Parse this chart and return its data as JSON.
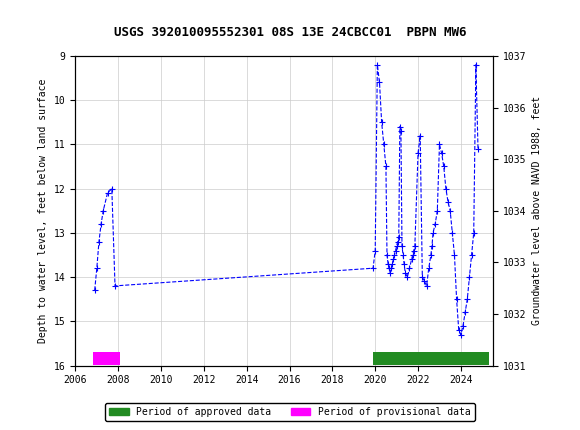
{
  "title": "USGS 392010095552301 08S 13E 24CBCC01  PBPN MW6",
  "header_color": "#1a6b3c",
  "header_text": "USGS",
  "ylabel_left": "Depth to water level, feet below land surface",
  "ylabel_right": "Groundwater level above NAVD 1988, feet",
  "ylim_left": [
    9.0,
    16.0
  ],
  "ylim_right": [
    1031.0,
    1037.0
  ],
  "xlim": [
    2006,
    2025.5
  ],
  "xticks": [
    2006,
    2008,
    2010,
    2012,
    2014,
    2016,
    2018,
    2020,
    2022,
    2024
  ],
  "yticks_left": [
    9.0,
    10.0,
    11.0,
    12.0,
    13.0,
    14.0,
    15.0,
    16.0
  ],
  "yticks_right": [
    1031.0,
    1032.0,
    1033.0,
    1034.0,
    1035.0,
    1036.0,
    1037.0
  ],
  "background_color": "#ffffff",
  "grid_color": "#cccccc",
  "line_color": "#0000ff",
  "approved_color": "#228b22",
  "provisional_color": "#ff00ff",
  "data_x": [
    2006.9,
    2007.0,
    2007.1,
    2007.2,
    2007.3,
    2007.5,
    2007.7,
    2007.85,
    2019.9,
    2020.0,
    2020.1,
    2020.2,
    2020.3,
    2020.4,
    2020.5,
    2020.55,
    2020.6,
    2020.65,
    2020.7,
    2020.75,
    2020.8,
    2020.85,
    2020.9,
    2020.95,
    2021.0,
    2021.05,
    2021.1,
    2021.15,
    2021.2,
    2021.25,
    2021.3,
    2021.35,
    2021.4,
    2021.5,
    2021.6,
    2021.7,
    2021.75,
    2021.8,
    2021.85,
    2022.0,
    2022.1,
    2022.2,
    2022.3,
    2022.4,
    2022.5,
    2022.6,
    2022.65,
    2022.7,
    2022.8,
    2022.9,
    2023.0,
    2023.1,
    2023.2,
    2023.3,
    2023.4,
    2023.5,
    2023.6,
    2023.7,
    2023.8,
    2023.9,
    2024.0,
    2024.1,
    2024.2,
    2024.3,
    2024.4,
    2024.5,
    2024.6,
    2024.7,
    2024.8
  ],
  "data_y": [
    14.3,
    13.8,
    13.2,
    12.8,
    12.5,
    12.1,
    12.0,
    14.2,
    13.8,
    13.4,
    9.2,
    9.6,
    10.5,
    11.0,
    11.5,
    13.5,
    13.7,
    13.8,
    13.9,
    13.8,
    13.7,
    13.6,
    13.5,
    13.4,
    13.3,
    13.2,
    13.1,
    10.6,
    10.7,
    13.3,
    13.5,
    13.7,
    13.9,
    14.0,
    13.8,
    13.6,
    13.5,
    13.4,
    13.3,
    11.2,
    10.8,
    14.0,
    14.1,
    14.2,
    13.8,
    13.5,
    13.3,
    13.0,
    12.8,
    12.5,
    11.0,
    11.2,
    11.5,
    12.0,
    12.3,
    12.5,
    13.0,
    13.5,
    14.5,
    15.2,
    15.3,
    15.1,
    14.8,
    14.5,
    14.0,
    13.5,
    13.0,
    9.2,
    11.1
  ],
  "approved_periods": [
    [
      2019.9,
      2025.3
    ]
  ],
  "provisional_periods": [
    [
      2006.8,
      2008.1
    ]
  ],
  "period_y": 16.0,
  "period_height": 0.3
}
